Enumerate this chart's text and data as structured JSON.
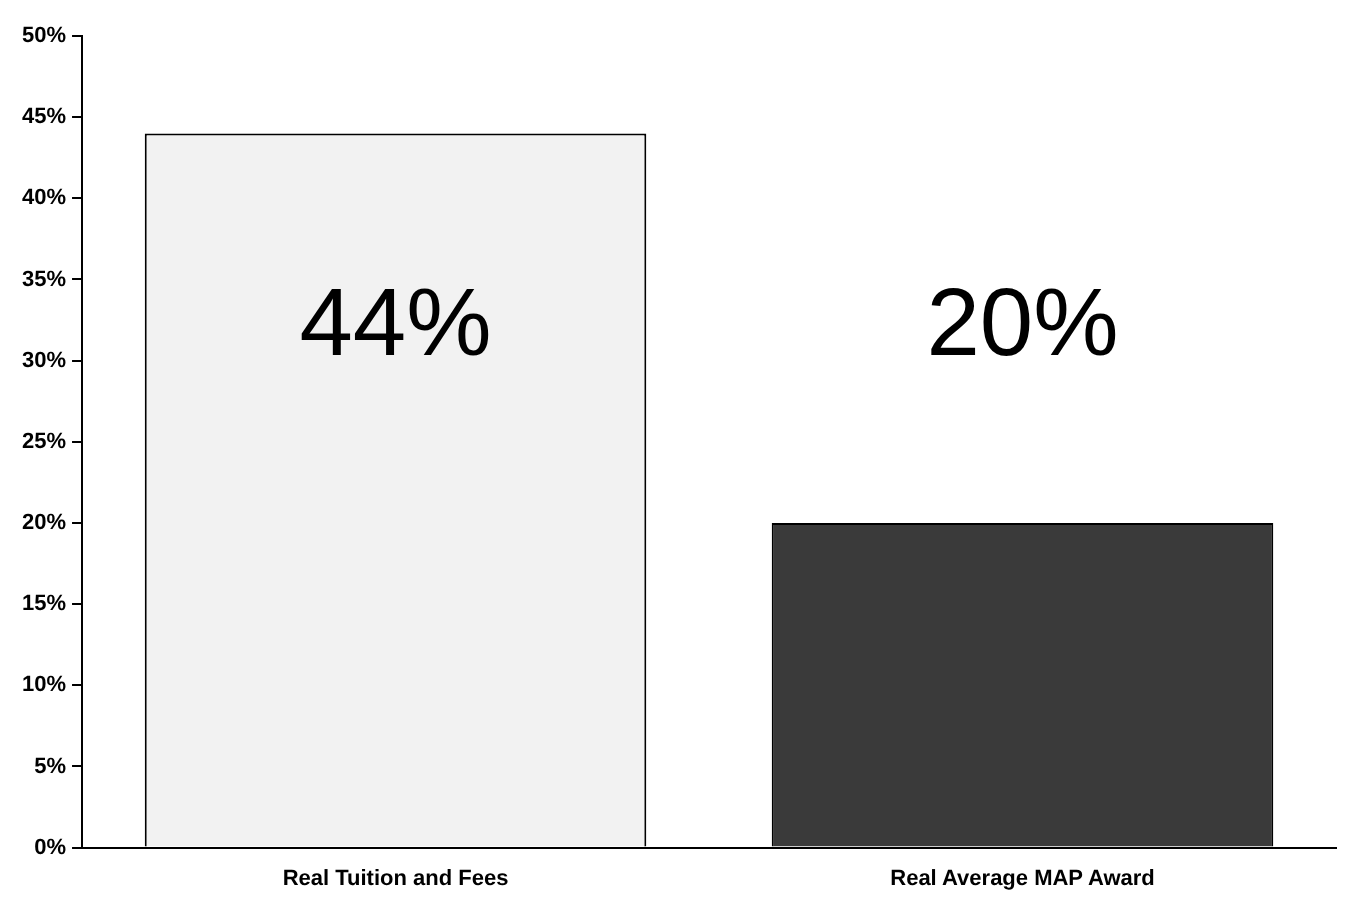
{
  "chart_data": {
    "type": "bar",
    "categories": [
      "Real Tuition and Fees",
      "Real Average MAP Award"
    ],
    "values": [
      44,
      20
    ],
    "colors": [
      "#f2f2f2",
      "#3a3a3a"
    ],
    "value_labels": [
      "44%",
      "20%"
    ],
    "ylim": [
      0,
      50
    ],
    "yticks": [
      {
        "value": 0,
        "label": "0%"
      },
      {
        "value": 5,
        "label": "5%"
      },
      {
        "value": 10,
        "label": "10%"
      },
      {
        "value": 15,
        "label": "15%"
      },
      {
        "value": 20,
        "label": "20%"
      },
      {
        "value": 25,
        "label": "25%"
      },
      {
        "value": 30,
        "label": "30%"
      },
      {
        "value": 35,
        "label": "35%"
      },
      {
        "value": 40,
        "label": "40%"
      },
      {
        "value": 45,
        "label": "45%"
      },
      {
        "value": 50,
        "label": "50%"
      }
    ],
    "grid": false,
    "legend": false
  }
}
